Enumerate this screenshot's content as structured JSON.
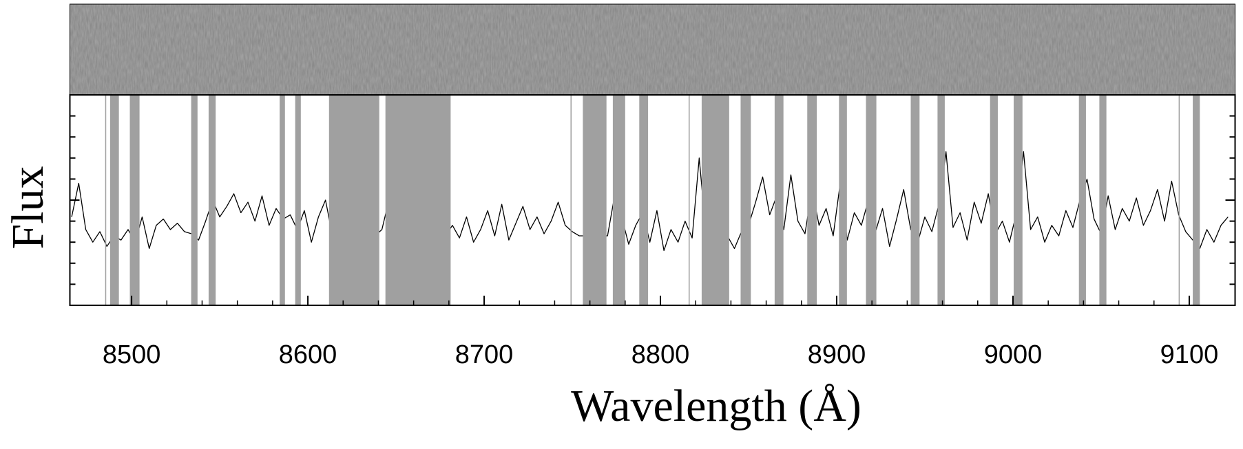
{
  "chart_data": {
    "type": "line",
    "xlabel": "Wavelength (Å)",
    "ylabel": "Flux",
    "xlim": [
      8465,
      9126
    ],
    "xticks": [
      8500,
      8600,
      8700,
      8800,
      8900,
      9000,
      9100
    ],
    "ylim": [
      0,
      1
    ],
    "yticks": [
      0,
      0.1,
      0.2,
      0.3,
      0.4,
      0.5,
      0.6,
      0.7,
      0.8,
      0.9,
      1
    ],
    "color": "#000000",
    "mask_color": "#a0a0a0",
    "x": [
      8466,
      8470,
      8474,
      8478,
      8482,
      8486,
      8490,
      8494,
      8498,
      8502,
      8506,
      8510,
      8514,
      8518,
      8522,
      8526,
      8530,
      8534,
      8538,
      8542,
      8546,
      8550,
      8554,
      8558,
      8562,
      8566,
      8570,
      8574,
      8578,
      8582,
      8586,
      8590,
      8594,
      8598,
      8602,
      8606,
      8610,
      8614,
      8618,
      8622,
      8626,
      8630,
      8634,
      8638,
      8642,
      8646,
      8650,
      8654,
      8658,
      8662,
      8666,
      8670,
      8674,
      8678,
      8682,
      8686,
      8690,
      8694,
      8698,
      8702,
      8706,
      8710,
      8714,
      8718,
      8722,
      8726,
      8730,
      8734,
      8738,
      8742,
      8746,
      8750,
      8754,
      8758,
      8762,
      8766,
      8770,
      8774,
      8778,
      8782,
      8786,
      8790,
      8794,
      8798,
      8802,
      8806,
      8810,
      8814,
      8818,
      8822,
      8826,
      8830,
      8834,
      8838,
      8842,
      8846,
      8850,
      8854,
      8858,
      8862,
      8866,
      8870,
      8874,
      8878,
      8882,
      8886,
      8890,
      8894,
      8898,
      8902,
      8906,
      8910,
      8914,
      8918,
      8922,
      8926,
      8930,
      8934,
      8938,
      8942,
      8946,
      8950,
      8954,
      8958,
      8962,
      8966,
      8970,
      8974,
      8978,
      8982,
      8986,
      8990,
      8994,
      8998,
      9002,
      9006,
      9010,
      9014,
      9018,
      9022,
      9026,
      9030,
      9034,
      9038,
      9042,
      9046,
      9050,
      9054,
      9058,
      9062,
      9066,
      9070,
      9074,
      9078,
      9082,
      9086,
      9090,
      9094,
      9098,
      9102,
      9106,
      9110,
      9114,
      9118,
      9122
    ],
    "values": [
      0.42,
      0.58,
      0.36,
      0.3,
      0.35,
      0.28,
      0.33,
      0.31,
      0.36,
      0.3,
      0.42,
      0.27,
      0.38,
      0.41,
      0.36,
      0.39,
      0.35,
      0.34,
      0.31,
      0.4,
      0.5,
      0.42,
      0.47,
      0.53,
      0.44,
      0.49,
      0.4,
      0.52,
      0.38,
      0.46,
      0.41,
      0.43,
      0.36,
      0.45,
      0.3,
      0.42,
      0.5,
      0.33,
      0.33,
      0.33,
      0.33,
      0.33,
      0.33,
      0.33,
      0.36,
      0.5,
      0.35,
      0.33,
      0.33,
      0.33,
      0.33,
      0.33,
      0.33,
      0.33,
      0.38,
      0.32,
      0.42,
      0.3,
      0.36,
      0.45,
      0.33,
      0.48,
      0.31,
      0.39,
      0.47,
      0.36,
      0.42,
      0.34,
      0.4,
      0.49,
      0.38,
      0.35,
      0.33,
      0.33,
      0.33,
      0.33,
      0.33,
      0.52,
      0.42,
      0.29,
      0.38,
      0.44,
      0.3,
      0.45,
      0.26,
      0.36,
      0.3,
      0.4,
      0.32,
      0.7,
      0.33,
      0.33,
      0.33,
      0.33,
      0.27,
      0.35,
      0.38,
      0.49,
      0.61,
      0.43,
      0.52,
      0.36,
      0.62,
      0.4,
      0.34,
      0.55,
      0.38,
      0.46,
      0.33,
      0.58,
      0.31,
      0.44,
      0.38,
      0.5,
      0.35,
      0.46,
      0.28,
      0.41,
      0.55,
      0.36,
      0.3,
      0.42,
      0.35,
      0.48,
      0.73,
      0.37,
      0.44,
      0.31,
      0.49,
      0.39,
      0.53,
      0.34,
      0.4,
      0.3,
      0.44,
      0.73,
      0.36,
      0.42,
      0.3,
      0.38,
      0.33,
      0.45,
      0.37,
      0.5,
      0.6,
      0.41,
      0.34,
      0.52,
      0.36,
      0.46,
      0.4,
      0.51,
      0.38,
      0.45,
      0.55,
      0.4,
      0.59,
      0.43,
      0.35,
      0.31,
      0.27,
      0.36,
      0.3,
      0.38,
      0.42
    ],
    "masks": [
      [
        8485,
        8485.6
      ],
      [
        8487.8,
        8492.8
      ],
      [
        8499,
        8504.5
      ],
      [
        8533.8,
        8537.4
      ],
      [
        8543.7,
        8547.7
      ],
      [
        8584,
        8587
      ],
      [
        8592.8,
        8596
      ],
      [
        8612,
        8640.5
      ],
      [
        8644,
        8681
      ],
      [
        8749,
        8749.6
      ],
      [
        8756,
        8769.4
      ],
      [
        8773,
        8780
      ],
      [
        8788,
        8793
      ],
      [
        8816,
        8816.6
      ],
      [
        8823.4,
        8839
      ],
      [
        8845.5,
        8851.3
      ],
      [
        8864.8,
        8869.8
      ],
      [
        8883.3,
        8888.7
      ],
      [
        8901.3,
        8905.8
      ],
      [
        8916.6,
        8922.5
      ],
      [
        8942,
        8947
      ],
      [
        8957.2,
        8961.3
      ],
      [
        8987,
        8991.4
      ],
      [
        9000.4,
        9005.4
      ],
      [
        9037.4,
        9041.4
      ],
      [
        9049,
        9053
      ],
      [
        9094,
        9094.6
      ],
      [
        9102,
        9106
      ]
    ]
  }
}
